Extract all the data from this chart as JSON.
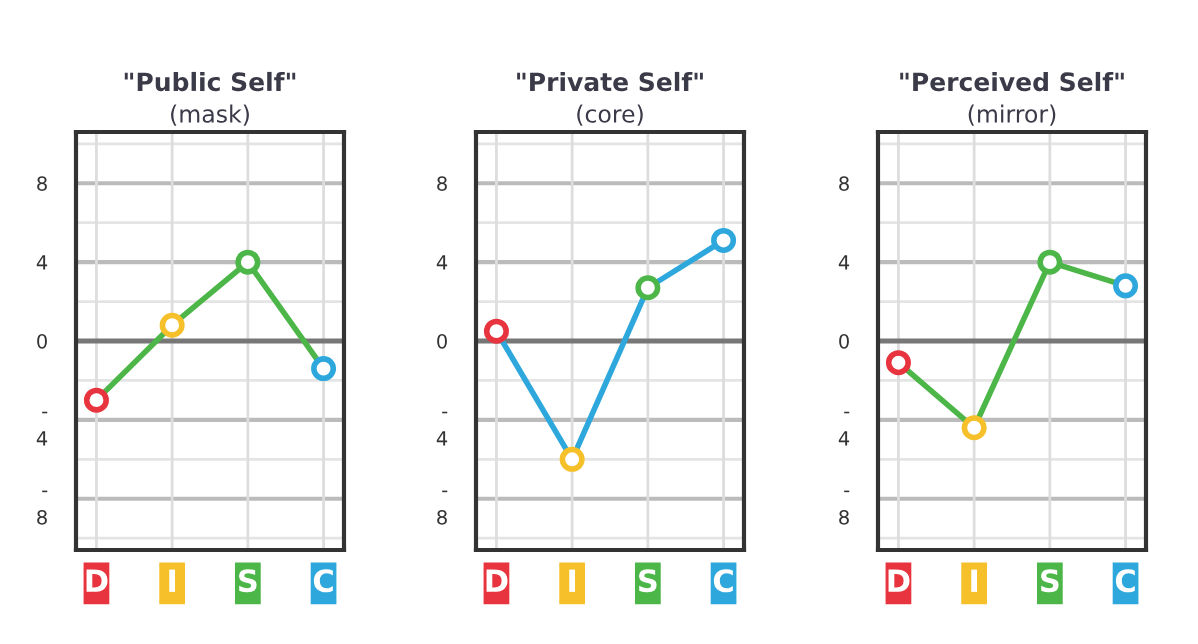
{
  "chart_data": [
    {
      "type": "line",
      "title": "\"Public Self\"",
      "subtitle": "(mask)",
      "categories": [
        "D",
        "I",
        "S",
        "C"
      ],
      "series": [
        {
          "color": "#4cb648",
          "colors": [
            "#e8343f",
            "#f5c02a",
            "#4cb648",
            "#2ea8dc"
          ],
          "values": [
            -3.0,
            0.8,
            4.0,
            -1.4
          ]
        }
      ],
      "ylim": [
        -10.6,
        10.6
      ],
      "yticks": [
        {
          "value": -10,
          "label": null
        },
        {
          "value": -8,
          "label": "-\n8"
        },
        {
          "value": -6,
          "label": null
        },
        {
          "value": -4,
          "label": "-\n4"
        },
        {
          "value": -2,
          "label": null
        },
        0,
        {
          "value": 2,
          "label": null
        },
        4,
        {
          "value": 6,
          "label": null
        },
        8,
        {
          "value": 10,
          "label": null
        }
      ],
      "grid": true,
      "marker": "circle",
      "ref_lines": [
        {
          "axis": "y",
          "value": 0,
          "color": "#777777"
        }
      ]
    },
    {
      "type": "line",
      "title": "\"Private Self\"",
      "subtitle": "(core)",
      "categories": [
        "D",
        "I",
        "S",
        "C"
      ],
      "series": [
        {
          "color": "#2ea8dc",
          "colors": [
            "#e8343f",
            "#f5c02a",
            "#4cb648",
            "#2ea8dc"
          ],
          "values": [
            0.5,
            -6.0,
            2.7,
            5.1
          ]
        }
      ],
      "ylim": [
        -10.6,
        10.6
      ],
      "yticks": [
        {
          "value": -10,
          "label": null
        },
        {
          "value": -8,
          "label": "-\n8"
        },
        {
          "value": -6,
          "label": null
        },
        {
          "value": -4,
          "label": "-\n4"
        },
        {
          "value": -2,
          "label": null
        },
        0,
        {
          "value": 2,
          "label": null
        },
        4,
        {
          "value": 6,
          "label": null
        },
        8,
        {
          "value": 10,
          "label": null
        }
      ],
      "grid": true,
      "marker": "circle",
      "ref_lines": [
        {
          "axis": "y",
          "value": 0,
          "color": "#777777"
        }
      ]
    },
    {
      "type": "line",
      "title": "\"Perceived Self\"",
      "subtitle": "(mirror)",
      "categories": [
        "D",
        "I",
        "S",
        "C"
      ],
      "series": [
        {
          "color": "#4cb648",
          "colors": [
            "#e8343f",
            "#f5c02a",
            "#4cb648",
            "#2ea8dc"
          ],
          "values": [
            -1.1,
            -4.4,
            4.0,
            2.8
          ]
        }
      ],
      "ylim": [
        -10.6,
        10.6
      ],
      "yticks": [
        {
          "value": -10,
          "label": null
        },
        {
          "value": -8,
          "label": "-\n8"
        },
        {
          "value": -6,
          "label": null
        },
        {
          "value": -4,
          "label": "-\n4"
        },
        {
          "value": -2,
          "label": null
        },
        0,
        {
          "value": 2,
          "label": null
        },
        4,
        {
          "value": 6,
          "label": null
        },
        8,
        {
          "value": 10,
          "label": null
        }
      ],
      "grid": true,
      "marker": "circle",
      "ref_lines": [
        {
          "axis": "y",
          "value": 0,
          "color": "#777777"
        }
      ]
    }
  ]
}
